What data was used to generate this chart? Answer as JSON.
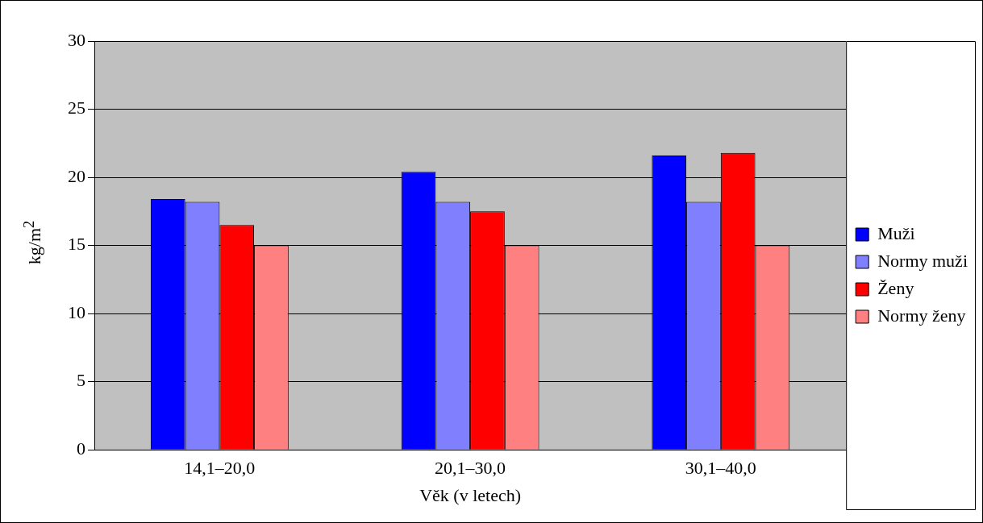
{
  "chart_data": {
    "type": "bar",
    "xlabel": "Věk (v letech)",
    "ylabel": "kg/m$^{2}$",
    "categories": [
      "14,1–20,0",
      "20,1–30,0",
      "30,1–40,0"
    ],
    "series": [
      {
        "name": "Muži",
        "color": "#0000ff",
        "values": [
          18.4,
          20.4,
          21.6
        ]
      },
      {
        "name": "Normy muži",
        "color": "#8080ff",
        "values": [
          18.2,
          18.2,
          18.2
        ]
      },
      {
        "name": "Ženy",
        "color": "#ff0000",
        "values": [
          16.5,
          17.5,
          21.8
        ]
      },
      {
        "name": "Normy ženy",
        "color": "#ff8080",
        "values": [
          15,
          15,
          15
        ]
      }
    ],
    "ylim": [
      0,
      30
    ],
    "yticks": [
      0,
      5,
      10,
      15,
      20,
      25,
      30
    ],
    "grid": "y",
    "legend": "right"
  }
}
